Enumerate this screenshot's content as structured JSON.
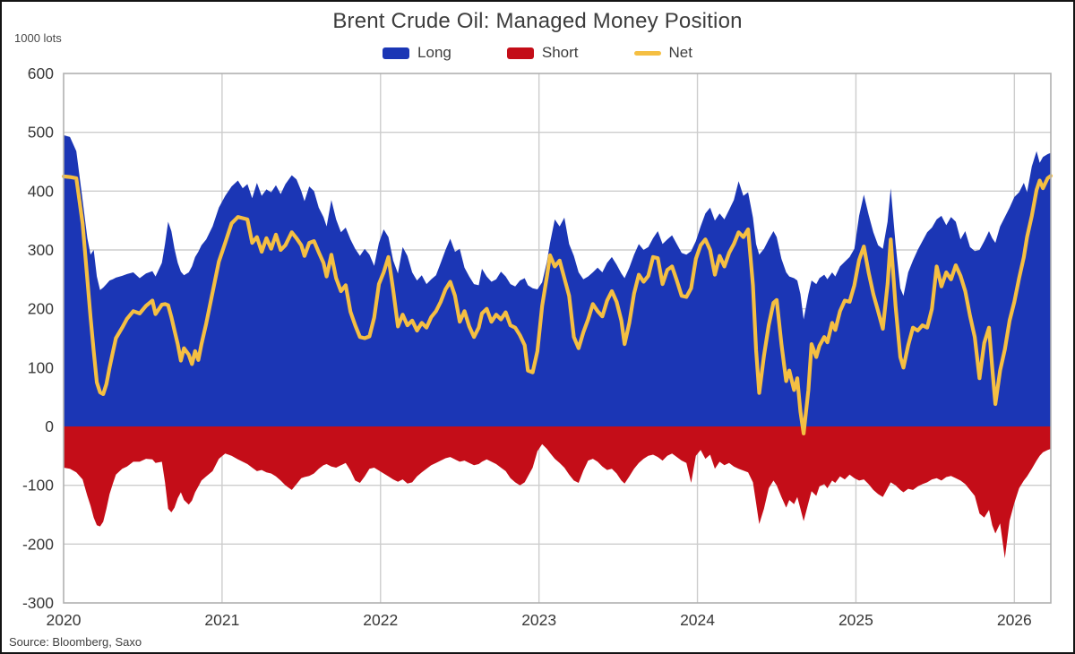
{
  "title": "Brent Crude Oil: Managed Money Position",
  "y_unit": "1000 lots",
  "source": "Source: Bloomberg, Saxo",
  "legend": {
    "long_label": "Long",
    "short_label": "Short",
    "net_label": "Net"
  },
  "chart_data": {
    "type": "area",
    "title": "Brent Crude Oil: Managed Money Position",
    "ylabel": "1000 lots",
    "x_ticks": [
      2020,
      2021,
      2022,
      2023,
      2024,
      2025,
      2026
    ],
    "y_ticks": [
      600,
      500,
      400,
      300,
      200,
      100,
      0,
      -100,
      -200,
      -300
    ],
    "x_range": [
      2020,
      2026.23
    ],
    "y_range": [
      -300,
      600
    ],
    "grid": true,
    "legend_position": "top",
    "colors": {
      "grid": "#cdcdcd",
      "plot_border": "#b0b0b0",
      "tick_text": "#383838"
    },
    "series": [
      {
        "name": "Long",
        "type": "area",
        "color": "#1b36b5"
      },
      {
        "name": "Short",
        "type": "area",
        "color": "#c40d18"
      },
      {
        "name": "Net",
        "type": "line",
        "color": "#f5bf42"
      }
    ],
    "columns": [
      "year",
      "long",
      "short",
      "net"
    ],
    "points": [
      [
        2020.0,
        495,
        -70,
        425
      ],
      [
        2020.04,
        492,
        -72,
        424
      ],
      [
        2020.08,
        468,
        -78,
        422
      ],
      [
        2020.12,
        385,
        -90,
        345
      ],
      [
        2020.15,
        320,
        -118,
        250
      ],
      [
        2020.17,
        292,
        -135,
        185
      ],
      [
        2020.19,
        300,
        -155,
        128
      ],
      [
        2020.21,
        255,
        -168,
        75
      ],
      [
        2020.23,
        232,
        -170,
        58
      ],
      [
        2020.25,
        236,
        -162,
        55
      ],
      [
        2020.27,
        242,
        -140,
        72
      ],
      [
        2020.29,
        248,
        -115,
        100
      ],
      [
        2020.31,
        250,
        -98,
        125
      ],
      [
        2020.33,
        253,
        -82,
        150
      ],
      [
        2020.37,
        256,
        -72,
        168
      ],
      [
        2020.4,
        259,
        -68,
        183
      ],
      [
        2020.44,
        262,
        -60,
        196
      ],
      [
        2020.48,
        252,
        -60,
        192
      ],
      [
        2020.52,
        260,
        -55,
        205
      ],
      [
        2020.56,
        264,
        -56,
        214
      ],
      [
        2020.58,
        255,
        -62,
        191
      ],
      [
        2020.62,
        278,
        -60,
        207
      ],
      [
        2020.64,
        310,
        -95,
        208
      ],
      [
        2020.66,
        348,
        -140,
        206
      ],
      [
        2020.68,
        332,
        -146,
        186
      ],
      [
        2020.7,
        302,
        -138,
        163
      ],
      [
        2020.72,
        278,
        -122,
        140
      ],
      [
        2020.74,
        263,
        -112,
        112
      ],
      [
        2020.76,
        257,
        -125,
        133
      ],
      [
        2020.79,
        262,
        -133,
        122
      ],
      [
        2020.81,
        272,
        -126,
        106
      ],
      [
        2020.83,
        288,
        -112,
        128
      ],
      [
        2020.85,
        297,
        -102,
        113
      ],
      [
        2020.87,
        308,
        -92,
        140
      ],
      [
        2020.9,
        318,
        -85,
        175
      ],
      [
        2020.94,
        340,
        -76,
        228
      ],
      [
        2020.98,
        372,
        -55,
        280
      ],
      [
        2021.02,
        392,
        -46,
        312
      ],
      [
        2021.06,
        408,
        -50,
        345
      ],
      [
        2021.1,
        418,
        -56,
        356
      ],
      [
        2021.13,
        405,
        -60,
        354
      ],
      [
        2021.16,
        412,
        -64,
        352
      ],
      [
        2021.19,
        388,
        -70,
        312
      ],
      [
        2021.22,
        414,
        -76,
        322
      ],
      [
        2021.25,
        392,
        -74,
        297
      ],
      [
        2021.28,
        403,
        -78,
        320
      ],
      [
        2021.31,
        398,
        -80,
        302
      ],
      [
        2021.34,
        410,
        -85,
        326
      ],
      [
        2021.37,
        395,
        -92,
        300
      ],
      [
        2021.4,
        412,
        -100,
        308
      ],
      [
        2021.44,
        427,
        -108,
        330
      ],
      [
        2021.47,
        420,
        -98,
        320
      ],
      [
        2021.5,
        400,
        -88,
        308
      ],
      [
        2021.52,
        383,
        -86,
        290
      ],
      [
        2021.55,
        408,
        -84,
        312
      ],
      [
        2021.58,
        400,
        -80,
        315
      ],
      [
        2021.61,
        372,
        -72,
        296
      ],
      [
        2021.64,
        356,
        -66,
        278
      ],
      [
        2021.66,
        340,
        -64,
        255
      ],
      [
        2021.69,
        385,
        -68,
        292
      ],
      [
        2021.72,
        352,
        -70,
        252
      ],
      [
        2021.75,
        330,
        -66,
        230
      ],
      [
        2021.78,
        338,
        -62,
        240
      ],
      [
        2021.81,
        318,
        -75,
        195
      ],
      [
        2021.84,
        302,
        -92,
        172
      ],
      [
        2021.87,
        290,
        -96,
        152
      ],
      [
        2021.9,
        302,
        -85,
        150
      ],
      [
        2021.93,
        292,
        -72,
        153
      ],
      [
        2021.96,
        273,
        -70,
        185
      ],
      [
        2021.99,
        312,
        -75,
        242
      ],
      [
        2022.02,
        335,
        -80,
        262
      ],
      [
        2022.05,
        322,
        -85,
        288
      ],
      [
        2022.08,
        282,
        -90,
        232
      ],
      [
        2022.11,
        260,
        -94,
        170
      ],
      [
        2022.14,
        305,
        -90,
        190
      ],
      [
        2022.17,
        290,
        -97,
        172
      ],
      [
        2022.2,
        262,
        -95,
        180
      ],
      [
        2022.23,
        248,
        -85,
        163
      ],
      [
        2022.26,
        257,
        -78,
        176
      ],
      [
        2022.29,
        242,
        -72,
        168
      ],
      [
        2022.32,
        250,
        -66,
        186
      ],
      [
        2022.35,
        257,
        -62,
        196
      ],
      [
        2022.38,
        278,
        -58,
        212
      ],
      [
        2022.41,
        300,
        -54,
        233
      ],
      [
        2022.44,
        319,
        -52,
        246
      ],
      [
        2022.47,
        297,
        -56,
        222
      ],
      [
        2022.5,
        302,
        -60,
        178
      ],
      [
        2022.53,
        270,
        -58,
        196
      ],
      [
        2022.56,
        255,
        -62,
        170
      ],
      [
        2022.59,
        242,
        -66,
        152
      ],
      [
        2022.62,
        240,
        -64,
        168
      ],
      [
        2022.64,
        268,
        -60,
        192
      ],
      [
        2022.67,
        255,
        -56,
        200
      ],
      [
        2022.7,
        246,
        -60,
        178
      ],
      [
        2022.73,
        250,
        -64,
        190
      ],
      [
        2022.76,
        263,
        -70,
        182
      ],
      [
        2022.79,
        255,
        -76,
        194
      ],
      [
        2022.82,
        242,
        -88,
        172
      ],
      [
        2022.85,
        238,
        -95,
        168
      ],
      [
        2022.88,
        248,
        -100,
        155
      ],
      [
        2022.91,
        252,
        -95,
        138
      ],
      [
        2022.93,
        240,
        -85,
        95
      ],
      [
        2022.96,
        235,
        -70,
        92
      ],
      [
        2022.99,
        233,
        -42,
        128
      ],
      [
        2023.02,
        245,
        -30,
        205
      ],
      [
        2023.05,
        280,
        -38,
        255
      ],
      [
        2023.07,
        312,
        -45,
        291
      ],
      [
        2023.1,
        352,
        -55,
        272
      ],
      [
        2023.13,
        340,
        -62,
        282
      ],
      [
        2023.16,
        355,
        -70,
        252
      ],
      [
        2023.19,
        310,
        -82,
        222
      ],
      [
        2023.22,
        290,
        -92,
        152
      ],
      [
        2023.25,
        262,
        -96,
        133
      ],
      [
        2023.28,
        250,
        -75,
        160
      ],
      [
        2023.31,
        255,
        -58,
        182
      ],
      [
        2023.34,
        262,
        -55,
        208
      ],
      [
        2023.37,
        270,
        -60,
        196
      ],
      [
        2023.4,
        262,
        -68,
        187
      ],
      [
        2023.43,
        278,
        -74,
        214
      ],
      [
        2023.46,
        288,
        -72,
        230
      ],
      [
        2023.49,
        275,
        -80,
        212
      ],
      [
        2023.52,
        260,
        -92,
        180
      ],
      [
        2023.54,
        252,
        -97,
        140
      ],
      [
        2023.57,
        270,
        -85,
        176
      ],
      [
        2023.6,
        292,
        -72,
        226
      ],
      [
        2023.63,
        310,
        -62,
        258
      ],
      [
        2023.66,
        300,
        -55,
        246
      ],
      [
        2023.69,
        305,
        -50,
        256
      ],
      [
        2023.72,
        320,
        -48,
        288
      ],
      [
        2023.75,
        332,
        -52,
        286
      ],
      [
        2023.78,
        310,
        -58,
        242
      ],
      [
        2023.81,
        318,
        -50,
        266
      ],
      [
        2023.84,
        325,
        -46,
        272
      ],
      [
        2023.87,
        310,
        -52,
        248
      ],
      [
        2023.9,
        295,
        -58,
        222
      ],
      [
        2023.93,
        292,
        -62,
        220
      ],
      [
        2023.96,
        298,
        -96,
        235
      ],
      [
        2023.99,
        315,
        -50,
        285
      ],
      [
        2024.02,
        340,
        -40,
        308
      ],
      [
        2024.05,
        362,
        -55,
        318
      ],
      [
        2024.08,
        372,
        -48,
        300
      ],
      [
        2024.11,
        350,
        -72,
        258
      ],
      [
        2024.14,
        362,
        -60,
        290
      ],
      [
        2024.17,
        352,
        -66,
        272
      ],
      [
        2024.2,
        368,
        -62,
        295
      ],
      [
        2024.23,
        385,
        -68,
        310
      ],
      [
        2024.26,
        417,
        -72,
        330
      ],
      [
        2024.29,
        392,
        -75,
        322
      ],
      [
        2024.32,
        398,
        -78,
        335
      ],
      [
        2024.35,
        355,
        -95,
        240
      ],
      [
        2024.37,
        310,
        -130,
        130
      ],
      [
        2024.39,
        292,
        -166,
        57
      ],
      [
        2024.42,
        302,
        -140,
        120
      ],
      [
        2024.45,
        318,
        -105,
        172
      ],
      [
        2024.48,
        332,
        -92,
        210
      ],
      [
        2024.5,
        322,
        -100,
        215
      ],
      [
        2024.53,
        285,
        -120,
        140
      ],
      [
        2024.56,
        262,
        -138,
        77
      ],
      [
        2024.58,
        255,
        -125,
        95
      ],
      [
        2024.61,
        252,
        -132,
        62
      ],
      [
        2024.63,
        248,
        -120,
        82
      ],
      [
        2024.65,
        225,
        -140,
        25
      ],
      [
        2024.67,
        182,
        -161,
        -12
      ],
      [
        2024.7,
        225,
        -130,
        62
      ],
      [
        2024.72,
        248,
        -110,
        140
      ],
      [
        2024.75,
        242,
        -118,
        118
      ],
      [
        2024.77,
        252,
        -102,
        137
      ],
      [
        2024.8,
        258,
        -98,
        152
      ],
      [
        2024.82,
        250,
        -105,
        143
      ],
      [
        2024.85,
        262,
        -92,
        176
      ],
      [
        2024.87,
        255,
        -96,
        164
      ],
      [
        2024.9,
        272,
        -85,
        196
      ],
      [
        2024.93,
        280,
        -90,
        214
      ],
      [
        2024.96,
        288,
        -82,
        212
      ],
      [
        2024.99,
        302,
        -88,
        240
      ],
      [
        2025.02,
        358,
        -92,
        283
      ],
      [
        2025.05,
        394,
        -90,
        306
      ],
      [
        2025.08,
        360,
        -98,
        262
      ],
      [
        2025.11,
        330,
        -108,
        225
      ],
      [
        2025.14,
        308,
        -115,
        196
      ],
      [
        2025.17,
        302,
        -120,
        166
      ],
      [
        2025.2,
        348,
        -105,
        242
      ],
      [
        2025.22,
        405,
        -95,
        318
      ],
      [
        2025.25,
        310,
        -100,
        205
      ],
      [
        2025.28,
        235,
        -108,
        118
      ],
      [
        2025.3,
        222,
        -112,
        100
      ],
      [
        2025.33,
        262,
        -106,
        138
      ],
      [
        2025.36,
        282,
        -108,
        168
      ],
      [
        2025.39,
        300,
        -102,
        163
      ],
      [
        2025.42,
        315,
        -98,
        172
      ],
      [
        2025.45,
        330,
        -95,
        168
      ],
      [
        2025.48,
        338,
        -90,
        200
      ],
      [
        2025.51,
        352,
        -88,
        272
      ],
      [
        2025.54,
        358,
        -92,
        238
      ],
      [
        2025.57,
        342,
        -86,
        262
      ],
      [
        2025.6,
        356,
        -84,
        250
      ],
      [
        2025.63,
        348,
        -88,
        274
      ],
      [
        2025.66,
        318,
        -92,
        256
      ],
      [
        2025.69,
        332,
        -98,
        230
      ],
      [
        2025.72,
        305,
        -108,
        188
      ],
      [
        2025.75,
        298,
        -118,
        152
      ],
      [
        2025.78,
        300,
        -148,
        82
      ],
      [
        2025.81,
        315,
        -155,
        142
      ],
      [
        2025.84,
        332,
        -142,
        168
      ],
      [
        2025.86,
        320,
        -168,
        100
      ],
      [
        2025.88,
        312,
        -182,
        38
      ],
      [
        2025.91,
        340,
        -165,
        95
      ],
      [
        2025.94,
        356,
        -224,
        131
      ],
      [
        2025.97,
        372,
        -160,
        180
      ],
      [
        2026.0,
        390,
        -130,
        212
      ],
      [
        2026.03,
        398,
        -105,
        252
      ],
      [
        2026.06,
        414,
        -92,
        288
      ],
      [
        2026.08,
        398,
        -85,
        322
      ],
      [
        2026.11,
        442,
        -72,
        358
      ],
      [
        2026.14,
        468,
        -58,
        402
      ],
      [
        2026.16,
        448,
        -50,
        418
      ],
      [
        2026.18,
        458,
        -44,
        405
      ],
      [
        2026.21,
        463,
        -40,
        422
      ],
      [
        2026.23,
        465,
        -38,
        426
      ]
    ]
  }
}
